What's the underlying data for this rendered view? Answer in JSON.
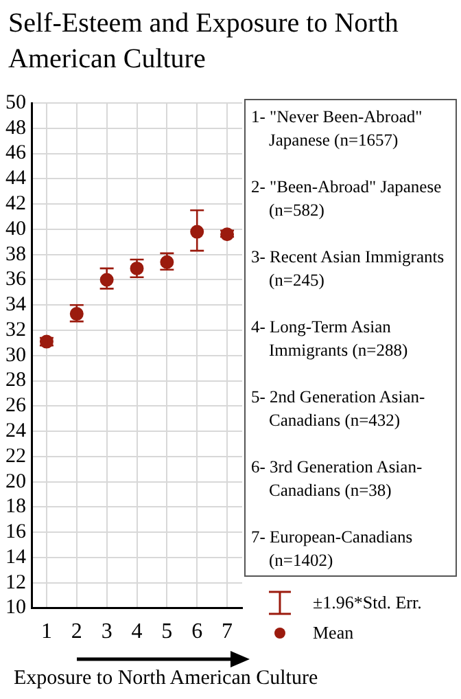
{
  "chart_data": {
    "type": "scatter",
    "title": "Self-Esteem and Exposure to North American Culture",
    "xlabel": "Exposure to North American Culture",
    "categories": [
      "1",
      "2",
      "3",
      "4",
      "5",
      "6",
      "7"
    ],
    "series": [
      {
        "name": "Mean",
        "color": "#9b1b0e",
        "values": [
          31.1,
          33.3,
          36.0,
          36.9,
          37.4,
          39.8,
          39.6
        ],
        "errors": [
          [
            30.8,
            31.4
          ],
          [
            32.7,
            34.0
          ],
          [
            35.3,
            36.9
          ],
          [
            36.2,
            37.6
          ],
          [
            36.8,
            38.1
          ],
          [
            38.3,
            41.5
          ],
          [
            39.4,
            39.9
          ]
        ]
      }
    ],
    "ylim": [
      10,
      50
    ],
    "yticks": [
      10,
      12,
      14,
      16,
      18,
      20,
      22,
      24,
      26,
      28,
      30,
      32,
      34,
      36,
      38,
      40,
      42,
      44,
      46,
      48,
      50
    ],
    "grid": true,
    "legend": "right",
    "marker": "circle",
    "annotations": [
      "1- \"Never Been-Abroad\" Japanese (n=1657)",
      "2- \"Been-Abroad\" Japanese (n=582)",
      "3-  Recent Asian Immigrants (n=245)",
      "4-  Long-Term Asian Immigrants (n=288)",
      "5-  2nd Generation Asian-Canadians (n=432)",
      "6-  3rd Generation Asian-Canadians (n=38)",
      "7-  European-Canadians (n=1402)",
      "±1.96*Std. Err."
    ]
  }
}
